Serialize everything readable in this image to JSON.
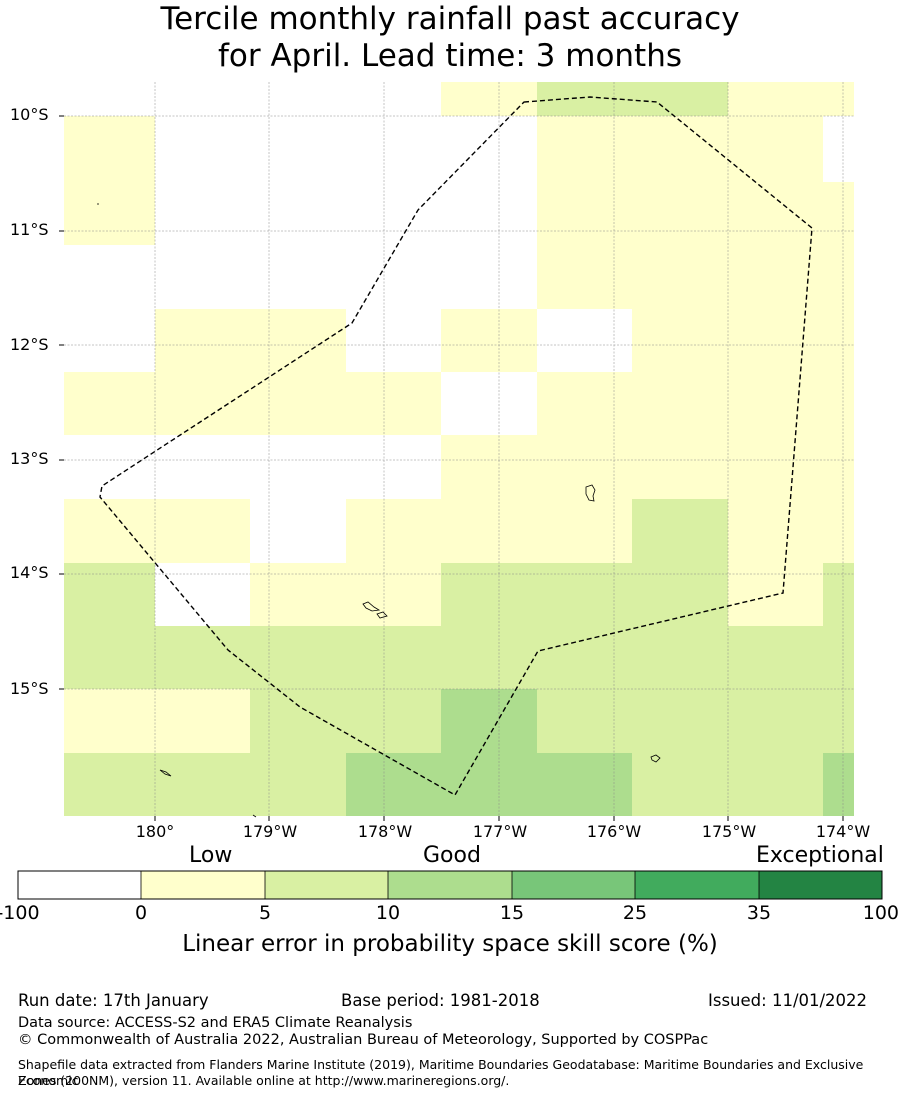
{
  "title": {
    "line1": "Tercile monthly rainfall past accuracy",
    "line2": "for April. Lead time: 3 months"
  },
  "map": {
    "lat_ticks": [
      "10°S",
      "11°S",
      "12°S",
      "13°S",
      "14°S",
      "15°S"
    ],
    "lon_ticks": [
      "180°",
      "179°W",
      "178°W",
      "177°W",
      "176°W",
      "175°W",
      "174°W"
    ],
    "cell_colors": {
      "0-5": "#ffffcc",
      "5-10": "#d9f0a3",
      "10-15": "#addd8e"
    },
    "boundary": "dashed EEZ boundary"
  },
  "colorbar": {
    "categories": [
      "Low",
      "Good",
      "Exceptional"
    ],
    "ticks": [
      "-100",
      "0",
      "5",
      "10",
      "15",
      "25",
      "35",
      "100"
    ],
    "colors": [
      "#ffffff",
      "#ffffcc",
      "#d9f0a3",
      "#addd8e",
      "#78c679",
      "#41ab5d",
      "#238443"
    ],
    "title": "Linear error in probability space skill score (%)"
  },
  "footer": {
    "run_date": "Run date: 17th January",
    "base_period": "Base period: 1981-2018",
    "issued": "Issued: 11/01/2022",
    "data_source": "Data source: ACCESS-S2 and ERA5 Climate Reanalysis",
    "copyright": "© Commonwealth of Australia 2022, Australian Bureau of Meteorology, Supported by COSPPac",
    "shapefile_line1": "Shapefile data extracted from Flanders Marine Institute (2019), Maritime Boundaries Geodatabase: Maritime Boundaries and Exclusive Economic",
    "shapefile_line2": "Zones (200NM), version 11. Available online at http://www.marineregions.org/."
  }
}
